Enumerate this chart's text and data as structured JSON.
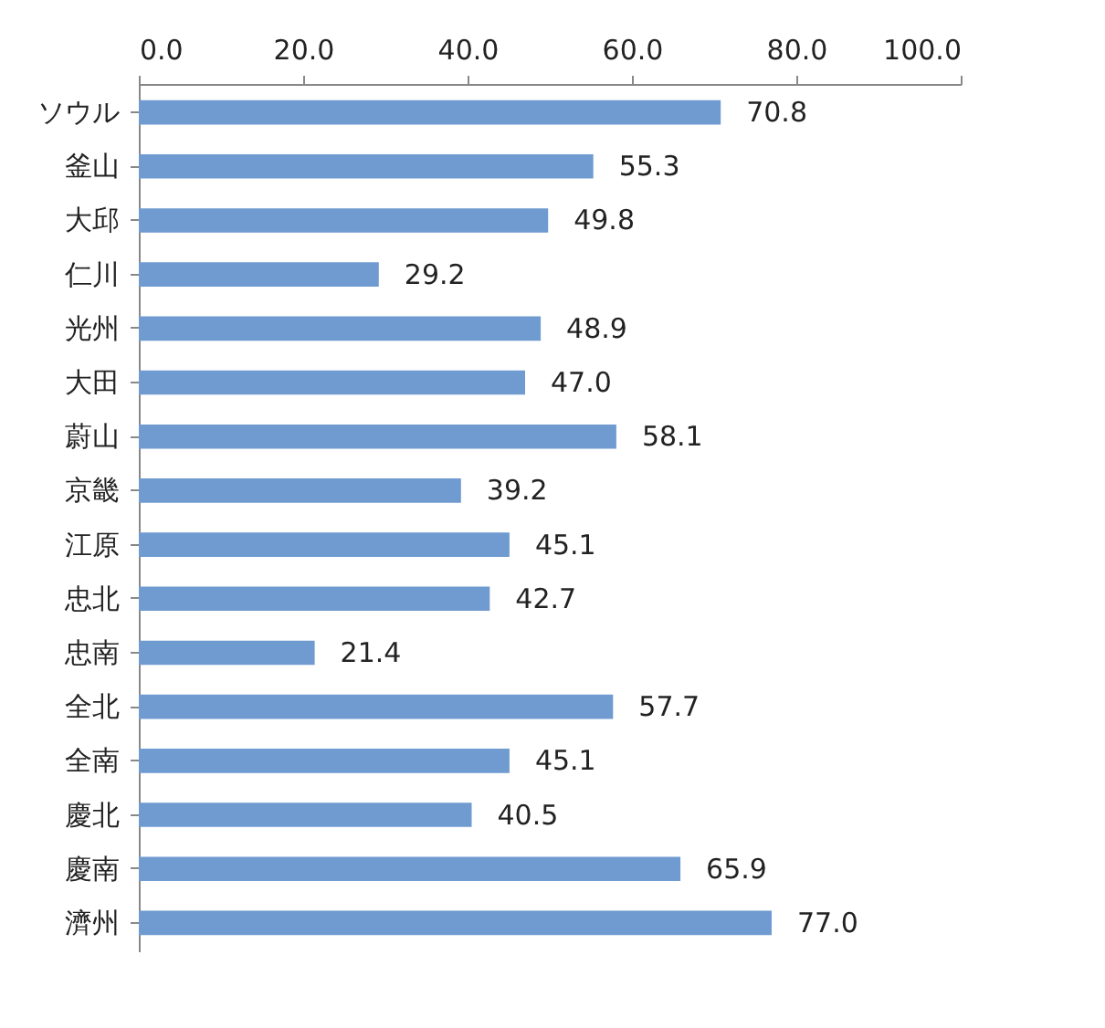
{
  "chart_data": {
    "type": "bar",
    "orientation": "horizontal",
    "categories": [
      "ソウル",
      "釜山",
      "大邱",
      "仁川",
      "光州",
      "大田",
      "蔚山",
      "京畿",
      "江原",
      "忠北",
      "忠南",
      "全北",
      "全南",
      "慶北",
      "慶南",
      "濟州"
    ],
    "values": [
      70.8,
      55.3,
      49.8,
      29.2,
      48.9,
      47.0,
      58.1,
      39.2,
      45.1,
      42.7,
      21.4,
      57.7,
      45.1,
      40.5,
      65.9,
      77.0
    ],
    "value_labels": [
      "70.8",
      "55.3",
      "49.8",
      "29.2",
      "48.9",
      "47.0",
      "58.1",
      "39.2",
      "45.1",
      "42.7",
      "21.4",
      "57.7",
      "45.1",
      "40.5",
      "65.9",
      "77.0"
    ],
    "color": "#6f9bd1",
    "xlim": [
      0,
      100
    ],
    "xticks": [
      {
        "value": 0,
        "label": "0.0"
      },
      {
        "value": 20,
        "label": "20.0"
      },
      {
        "value": 40,
        "label": "40.0"
      },
      {
        "value": 60,
        "label": "60.0"
      },
      {
        "value": 80,
        "label": "80.0"
      },
      {
        "value": 100,
        "label": "100.0"
      }
    ],
    "grid": false
  }
}
